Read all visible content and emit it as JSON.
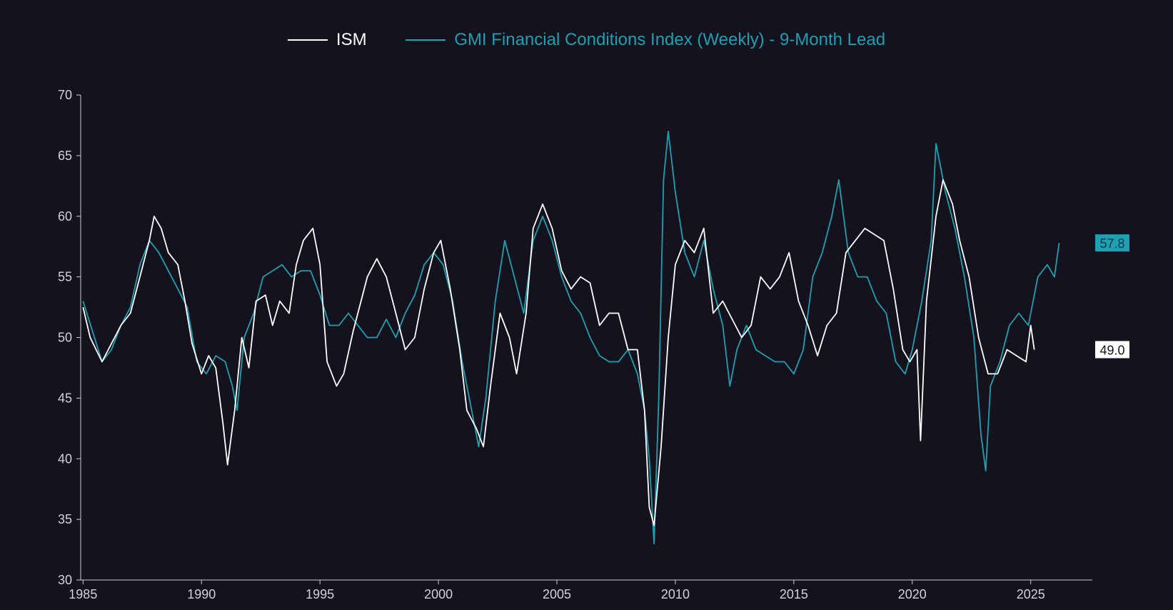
{
  "chart_data": {
    "type": "line",
    "title": "",
    "xlabel": "",
    "ylabel": "",
    "xlim": [
      1984.9,
      2027.6
    ],
    "ylim": [
      30,
      70
    ],
    "y_ticks": [
      30,
      35,
      40,
      45,
      50,
      55,
      60,
      65,
      70
    ],
    "x_ticks": [
      1985,
      1990,
      1995,
      2000,
      2005,
      2010,
      2015,
      2020,
      2025
    ],
    "legend_position": "top-center",
    "series": [
      {
        "name": "ISM",
        "color": "#ffffff",
        "end_label": "49.0",
        "points": [
          [
            1985.0,
            52.5
          ],
          [
            1985.3,
            50.0
          ],
          [
            1985.8,
            48.0
          ],
          [
            1986.2,
            49.5
          ],
          [
            1986.6,
            51.0
          ],
          [
            1987.0,
            52.0
          ],
          [
            1987.4,
            55.0
          ],
          [
            1987.8,
            58.0
          ],
          [
            1988.0,
            60.0
          ],
          [
            1988.3,
            59.0
          ],
          [
            1988.6,
            57.0
          ],
          [
            1989.0,
            56.0
          ],
          [
            1989.3,
            53.0
          ],
          [
            1989.6,
            49.5
          ],
          [
            1990.0,
            47.0
          ],
          [
            1990.3,
            48.5
          ],
          [
            1990.6,
            47.5
          ],
          [
            1990.9,
            43.0
          ],
          [
            1991.1,
            39.5
          ],
          [
            1991.4,
            44.0
          ],
          [
            1991.7,
            50.0
          ],
          [
            1992.0,
            47.5
          ],
          [
            1992.3,
            53.0
          ],
          [
            1992.7,
            53.5
          ],
          [
            1993.0,
            51.0
          ],
          [
            1993.3,
            53.0
          ],
          [
            1993.7,
            52.0
          ],
          [
            1994.0,
            56.0
          ],
          [
            1994.3,
            58.0
          ],
          [
            1994.7,
            59.0
          ],
          [
            1995.0,
            56.0
          ],
          [
            1995.3,
            48.0
          ],
          [
            1995.7,
            46.0
          ],
          [
            1996.0,
            47.0
          ],
          [
            1996.4,
            50.5
          ],
          [
            1996.8,
            53.5
          ],
          [
            1997.0,
            55.0
          ],
          [
            1997.4,
            56.5
          ],
          [
            1997.8,
            55.0
          ],
          [
            1998.2,
            52.0
          ],
          [
            1998.6,
            49.0
          ],
          [
            1999.0,
            50.0
          ],
          [
            1999.4,
            54.0
          ],
          [
            1999.8,
            57.0
          ],
          [
            2000.1,
            58.0
          ],
          [
            2000.5,
            54.0
          ],
          [
            2000.9,
            49.0
          ],
          [
            2001.2,
            44.0
          ],
          [
            2001.6,
            42.5
          ],
          [
            2001.9,
            41.0
          ],
          [
            2002.2,
            46.0
          ],
          [
            2002.6,
            52.0
          ],
          [
            2003.0,
            50.0
          ],
          [
            2003.3,
            47.0
          ],
          [
            2003.7,
            52.0
          ],
          [
            2004.0,
            59.0
          ],
          [
            2004.4,
            61.0
          ],
          [
            2004.8,
            59.0
          ],
          [
            2005.2,
            55.5
          ],
          [
            2005.6,
            54.0
          ],
          [
            2006.0,
            55.0
          ],
          [
            2006.4,
            54.5
          ],
          [
            2006.8,
            51.0
          ],
          [
            2007.2,
            52.0
          ],
          [
            2007.6,
            52.0
          ],
          [
            2008.0,
            49.0
          ],
          [
            2008.4,
            49.0
          ],
          [
            2008.7,
            44.0
          ],
          [
            2008.9,
            36.0
          ],
          [
            2009.1,
            34.5
          ],
          [
            2009.4,
            41.0
          ],
          [
            2009.7,
            50.0
          ],
          [
            2010.0,
            56.0
          ],
          [
            2010.4,
            58.0
          ],
          [
            2010.8,
            57.0
          ],
          [
            2011.2,
            59.0
          ],
          [
            2011.6,
            52.0
          ],
          [
            2012.0,
            53.0
          ],
          [
            2012.4,
            51.5
          ],
          [
            2012.8,
            50.0
          ],
          [
            2013.2,
            51.0
          ],
          [
            2013.6,
            55.0
          ],
          [
            2014.0,
            54.0
          ],
          [
            2014.4,
            55.0
          ],
          [
            2014.8,
            57.0
          ],
          [
            2015.2,
            53.0
          ],
          [
            2015.6,
            51.0
          ],
          [
            2016.0,
            48.5
          ],
          [
            2016.4,
            51.0
          ],
          [
            2016.8,
            52.0
          ],
          [
            2017.2,
            57.0
          ],
          [
            2017.6,
            58.0
          ],
          [
            2018.0,
            59.0
          ],
          [
            2018.4,
            58.5
          ],
          [
            2018.8,
            58.0
          ],
          [
            2019.2,
            54.0
          ],
          [
            2019.6,
            49.0
          ],
          [
            2019.9,
            48.0
          ],
          [
            2020.2,
            49.0
          ],
          [
            2020.35,
            41.5
          ],
          [
            2020.6,
            53.0
          ],
          [
            2021.0,
            60.0
          ],
          [
            2021.3,
            63.0
          ],
          [
            2021.7,
            61.0
          ],
          [
            2022.0,
            58.0
          ],
          [
            2022.4,
            55.0
          ],
          [
            2022.8,
            50.0
          ],
          [
            2023.2,
            47.0
          ],
          [
            2023.6,
            47.0
          ],
          [
            2024.0,
            49.0
          ],
          [
            2024.4,
            48.5
          ],
          [
            2024.8,
            48.0
          ],
          [
            2025.0,
            51.0
          ],
          [
            2025.15,
            49.0
          ]
        ]
      },
      {
        "name": "GMI Financial Conditions Index (Weekly) - 9-Month Lead",
        "color": "#1f9fb2",
        "end_label": "57.8",
        "points": [
          [
            1985.0,
            53.0
          ],
          [
            1985.4,
            50.5
          ],
          [
            1985.8,
            48.0
          ],
          [
            1986.2,
            49.0
          ],
          [
            1986.6,
            51.0
          ],
          [
            1987.0,
            52.5
          ],
          [
            1987.4,
            56.0
          ],
          [
            1987.8,
            58.0
          ],
          [
            1988.2,
            57.0
          ],
          [
            1988.6,
            55.5
          ],
          [
            1989.0,
            54.0
          ],
          [
            1989.4,
            52.5
          ],
          [
            1989.8,
            48.0
          ],
          [
            1990.2,
            47.0
          ],
          [
            1990.6,
            48.5
          ],
          [
            1991.0,
            48.0
          ],
          [
            1991.3,
            46.0
          ],
          [
            1991.5,
            44.0
          ],
          [
            1991.8,
            50.0
          ],
          [
            1992.2,
            52.0
          ],
          [
            1992.6,
            55.0
          ],
          [
            1993.0,
            55.5
          ],
          [
            1993.4,
            56.0
          ],
          [
            1993.8,
            55.0
          ],
          [
            1994.2,
            55.5
          ],
          [
            1994.6,
            55.5
          ],
          [
            1995.0,
            53.5
          ],
          [
            1995.4,
            51.0
          ],
          [
            1995.8,
            51.0
          ],
          [
            1996.2,
            52.0
          ],
          [
            1996.6,
            51.0
          ],
          [
            1997.0,
            50.0
          ],
          [
            1997.4,
            50.0
          ],
          [
            1997.8,
            51.5
          ],
          [
            1998.2,
            50.0
          ],
          [
            1998.6,
            52.0
          ],
          [
            1999.0,
            53.5
          ],
          [
            1999.4,
            56.0
          ],
          [
            1999.8,
            57.0
          ],
          [
            2000.2,
            56.0
          ],
          [
            2000.6,
            53.0
          ],
          [
            2001.0,
            48.0
          ],
          [
            2001.4,
            44.0
          ],
          [
            2001.7,
            41.0
          ],
          [
            2002.0,
            45.0
          ],
          [
            2002.4,
            53.0
          ],
          [
            2002.8,
            58.0
          ],
          [
            2003.2,
            55.0
          ],
          [
            2003.6,
            52.0
          ],
          [
            2004.0,
            58.0
          ],
          [
            2004.4,
            60.0
          ],
          [
            2004.8,
            58.0
          ],
          [
            2005.2,
            55.0
          ],
          [
            2005.6,
            53.0
          ],
          [
            2006.0,
            52.0
          ],
          [
            2006.4,
            50.0
          ],
          [
            2006.8,
            48.5
          ],
          [
            2007.2,
            48.0
          ],
          [
            2007.6,
            48.0
          ],
          [
            2008.0,
            49.0
          ],
          [
            2008.4,
            47.0
          ],
          [
            2008.7,
            44.0
          ],
          [
            2008.9,
            40.0
          ],
          [
            2009.1,
            33.0
          ],
          [
            2009.3,
            45.0
          ],
          [
            2009.5,
            63.0
          ],
          [
            2009.7,
            67.0
          ],
          [
            2010.0,
            62.0
          ],
          [
            2010.4,
            57.0
          ],
          [
            2010.8,
            55.0
          ],
          [
            2011.2,
            58.0
          ],
          [
            2011.6,
            54.0
          ],
          [
            2012.0,
            51.0
          ],
          [
            2012.3,
            46.0
          ],
          [
            2012.6,
            49.0
          ],
          [
            2013.0,
            51.0
          ],
          [
            2013.4,
            49.0
          ],
          [
            2013.8,
            48.5
          ],
          [
            2014.2,
            48.0
          ],
          [
            2014.6,
            48.0
          ],
          [
            2015.0,
            47.0
          ],
          [
            2015.4,
            49.0
          ],
          [
            2015.8,
            55.0
          ],
          [
            2016.2,
            57.0
          ],
          [
            2016.6,
            60.0
          ],
          [
            2016.9,
            63.0
          ],
          [
            2017.3,
            57.0
          ],
          [
            2017.7,
            55.0
          ],
          [
            2018.1,
            55.0
          ],
          [
            2018.5,
            53.0
          ],
          [
            2018.9,
            52.0
          ],
          [
            2019.3,
            48.0
          ],
          [
            2019.7,
            47.0
          ],
          [
            2020.0,
            49.0
          ],
          [
            2020.4,
            53.0
          ],
          [
            2020.8,
            58.0
          ],
          [
            2021.0,
            66.0
          ],
          [
            2021.4,
            62.0
          ],
          [
            2021.8,
            59.0
          ],
          [
            2022.2,
            55.0
          ],
          [
            2022.6,
            50.0
          ],
          [
            2022.9,
            42.0
          ],
          [
            2023.1,
            39.0
          ],
          [
            2023.3,
            46.0
          ],
          [
            2023.7,
            48.0
          ],
          [
            2024.1,
            51.0
          ],
          [
            2024.5,
            52.0
          ],
          [
            2024.9,
            51.0
          ],
          [
            2025.3,
            55.0
          ],
          [
            2025.7,
            56.0
          ],
          [
            2026.0,
            55.0
          ],
          [
            2026.2,
            57.8
          ]
        ]
      }
    ]
  }
}
